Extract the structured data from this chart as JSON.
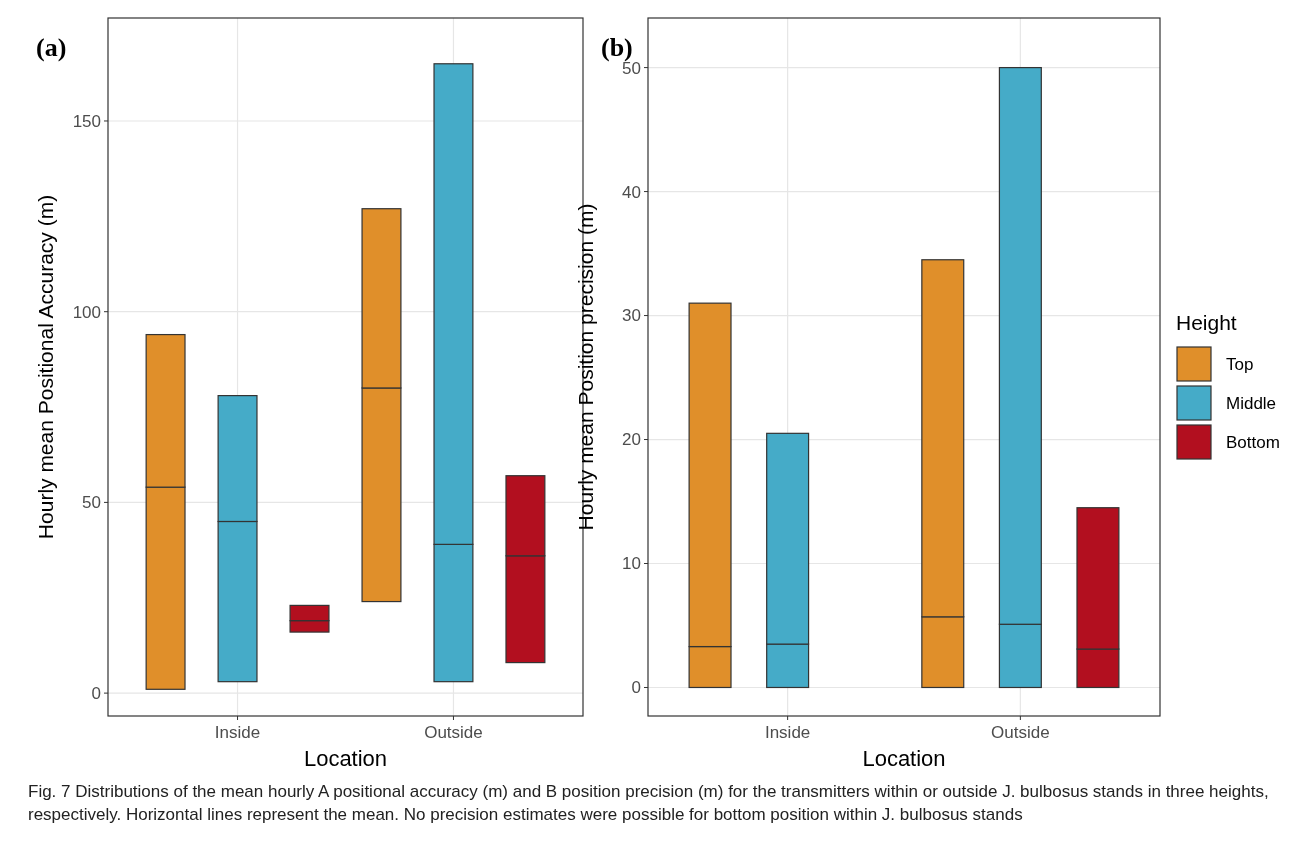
{
  "chart_data": [
    {
      "type": "bar",
      "stacked": true,
      "title": "(a)",
      "xlabel": "Location",
      "ylabel": "Hourly mean Positional Accuracy (m)",
      "categories": [
        null,
        "Inside",
        null,
        null,
        "Outside",
        null
      ],
      "ylim": [
        -6,
        177
      ],
      "yticks": [
        0,
        50,
        100,
        150
      ],
      "grid": true,
      "series": [
        {
          "color": "#e08f2a",
          "base": [
            1,
            null,
            null,
            24,
            null,
            null
          ],
          "values": [
            53,
            null,
            null,
            56,
            null,
            null
          ]
        },
        {
          "color": "#e08f2a",
          "values": [
            40,
            null,
            null,
            47,
            null,
            null
          ]
        },
        {
          "color": "#45abc8",
          "base": [
            null,
            3,
            null,
            null,
            3,
            null
          ],
          "values": [
            null,
            42,
            null,
            null,
            36,
            null
          ]
        },
        {
          "color": "#45abc8",
          "values": [
            null,
            33,
            null,
            null,
            126,
            null
          ]
        },
        {
          "color": "#b20f1f",
          "base": [
            null,
            null,
            16,
            null,
            null,
            8
          ],
          "values": [
            null,
            null,
            3,
            null,
            null,
            28
          ]
        },
        {
          "color": "#b20f1f",
          "values": [
            null,
            null,
            4,
            null,
            null,
            21
          ]
        }
      ]
    },
    {
      "type": "bar",
      "stacked": true,
      "title": "(b)",
      "xlabel": "Location",
      "ylabel": "Hourly mean Position precision (m)",
      "legend_title": "Height",
      "categories": [
        null,
        "Inside",
        null,
        null,
        "Outside",
        null
      ],
      "ylim": [
        -2.3,
        54
      ],
      "yticks": [
        0,
        10,
        20,
        30,
        40,
        50
      ],
      "grid": true,
      "legend": "right",
      "annotations": [
        "Fig. 7  Distributions of the mean hourly A positional accuracy (m) and B position precision (m) for the transmitters within or outside J. bulbosus stands in three heights, respectively. Horizontal lines represent the mean. No precision estimates were possible for bottom position within J. bulbosus stands"
      ],
      "series": [
        {
          "name": "Top",
          "color": "#e08f2a",
          "base": [
            0,
            null,
            null,
            0,
            null,
            null
          ],
          "values": [
            3.3,
            null,
            null,
            5.7,
            null,
            null
          ]
        },
        {
          "color": "#e08f2a",
          "values": [
            27.7,
            null,
            null,
            28.8,
            null,
            null
          ]
        },
        {
          "name": "Middle",
          "color": "#45abc8",
          "base": [
            null,
            0,
            null,
            null,
            0,
            null
          ],
          "values": [
            null,
            3.5,
            null,
            null,
            5.1,
            null
          ]
        },
        {
          "color": "#45abc8",
          "values": [
            null,
            17,
            null,
            null,
            44.9,
            null
          ]
        },
        {
          "name": "Bottom",
          "color": "#b20f1f",
          "base": [
            null,
            null,
            null,
            null,
            null,
            0
          ],
          "values": [
            null,
            null,
            null,
            null,
            null,
            3.1
          ]
        },
        {
          "color": "#b20f1f",
          "values": [
            null,
            null,
            null,
            null,
            null,
            11.4
          ]
        }
      ]
    }
  ]
}
